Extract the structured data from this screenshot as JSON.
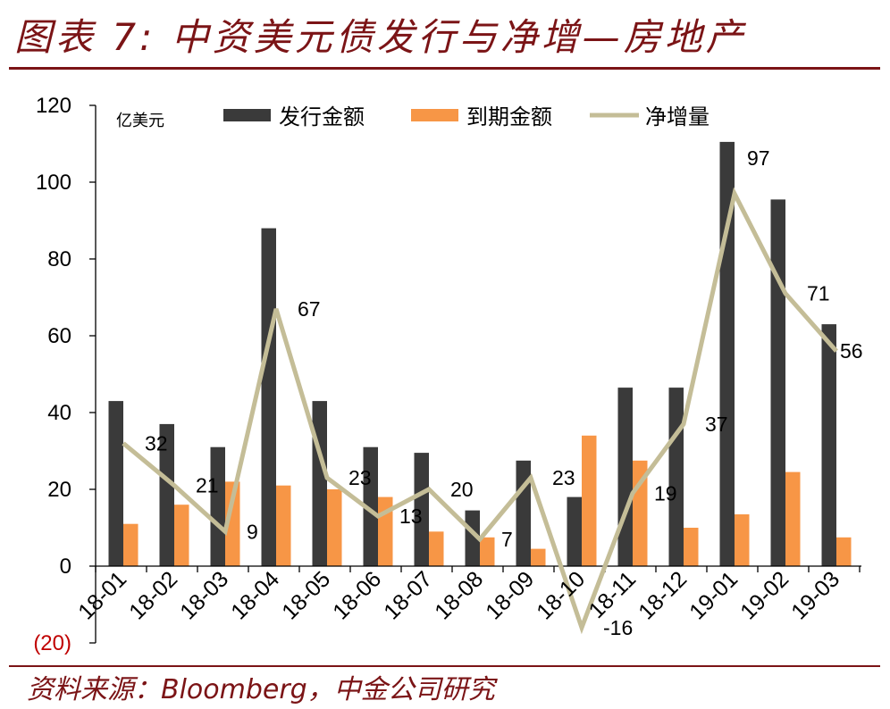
{
  "header": {
    "title": "图表 7: 中资美元债发行与净增—房地产"
  },
  "source_note": "资料来源：Bloomberg，中金公司研究",
  "theme": {
    "accent": "#7B1416",
    "negative_label_color": "#C00000",
    "axis_color": "#000000",
    "text_color": "#000000"
  },
  "chart_data": {
    "type": "bar",
    "unit_label": "亿美元",
    "categories": [
      "18-01",
      "18-02",
      "18-03",
      "18-04",
      "18-05",
      "18-06",
      "18-07",
      "18-08",
      "18-09",
      "18-10",
      "18-11",
      "18-12",
      "19-01",
      "19-02",
      "19-03"
    ],
    "series": [
      {
        "name": "发行金额",
        "type": "bar",
        "color": "#3A3A3A",
        "values": [
          43,
          37,
          31,
          88,
          43,
          31,
          29.5,
          14.5,
          27.5,
          18,
          46.5,
          46.5,
          110.5,
          95.5,
          63
        ]
      },
      {
        "name": "到期金额",
        "type": "bar",
        "color": "#F79646",
        "values": [
          11,
          16,
          22,
          21,
          20,
          18,
          9,
          7.5,
          4.5,
          34,
          27.5,
          10,
          13.5,
          24.5,
          7.5
        ]
      },
      {
        "name": "净增量",
        "type": "line",
        "color": "#C4BD97",
        "values": [
          32,
          21,
          9,
          67,
          23,
          13,
          20,
          7,
          23,
          -16,
          19,
          37,
          97,
          71,
          56
        ]
      }
    ],
    "ylim": [
      -20,
      120
    ],
    "yticks": [
      120,
      100,
      80,
      60,
      40,
      20,
      0,
      -20
    ],
    "ytick_labels": [
      "120",
      "100",
      "80",
      "60",
      "40",
      "20",
      "0",
      "(20)"
    ],
    "grid": false,
    "legend_position": "top"
  }
}
